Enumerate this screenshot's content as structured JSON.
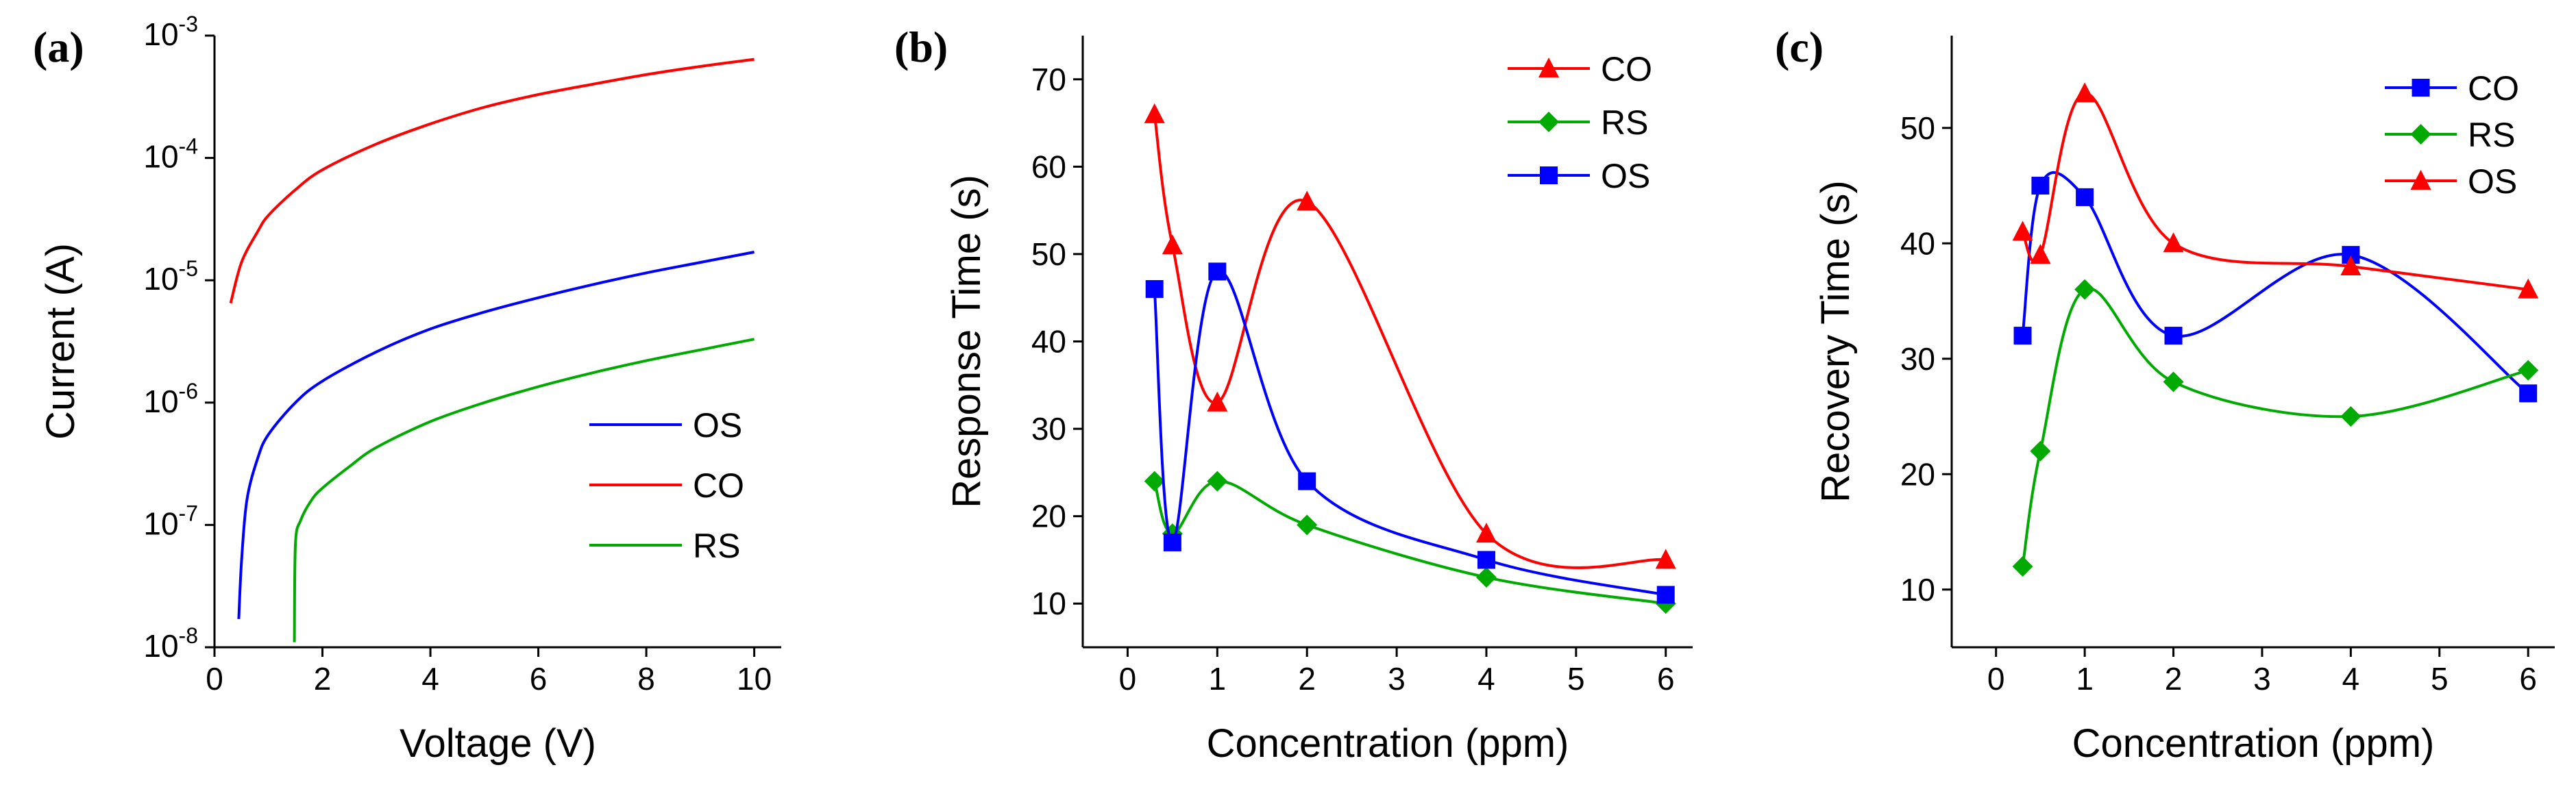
{
  "chart_data": [
    {
      "panel": "(a)",
      "type": "line",
      "xlabel": "Voltage (V)",
      "ylabel": "Current (A)",
      "xlim": [
        0,
        10.5
      ],
      "ylim": [
        1e-08,
        0.001
      ],
      "yscale": "log",
      "xticks": [
        0,
        2,
        4,
        6,
        8,
        10
      ],
      "yticks": [
        {
          "value": 1e-08,
          "base": "10",
          "exp": "-8"
        },
        {
          "value": 1e-07,
          "base": "10",
          "exp": "-7"
        },
        {
          "value": 1e-06,
          "base": "10",
          "exp": "-6"
        },
        {
          "value": 1e-05,
          "base": "10",
          "exp": "-5"
        },
        {
          "value": 0.0001,
          "base": "10",
          "exp": "-4"
        },
        {
          "value": 0.001,
          "base": "10",
          "exp": "-3"
        }
      ],
      "legend_position": "bottom-right",
      "series": [
        {
          "name": "OS",
          "color": "#0000ff",
          "x": [
            0.45,
            0.5,
            0.6,
            0.8,
            1.0,
            1.5,
            2,
            3,
            4,
            5,
            6,
            7,
            8,
            9,
            10
          ],
          "y": [
            1.7e-08,
            5e-08,
            1.6e-07,
            3.5e-07,
            5.5e-07,
            1e-06,
            1.5e-06,
            2.6e-06,
            4e-06,
            5.5e-06,
            7.2e-06,
            9.2e-06,
            1.15e-05,
            1.4e-05,
            1.7e-05
          ]
        },
        {
          "name": "CO",
          "color": "#ff0000",
          "x": [
            0.3,
            0.5,
            0.8,
            1,
            1.5,
            2,
            3,
            4,
            5,
            6,
            7,
            8,
            9,
            10
          ],
          "y": [
            6.5e-06,
            1.4e-05,
            2.5e-05,
            3.4e-05,
            5.5e-05,
            8e-05,
            0.00013,
            0.00019,
            0.00026,
            0.00033,
            0.0004,
            0.00048,
            0.00056,
            0.00064
          ]
        },
        {
          "name": "RS",
          "color": "#00aa00",
          "x": [
            1.48,
            1.5,
            1.6,
            1.8,
            2,
            2.5,
            3,
            4,
            5,
            6,
            7,
            8,
            9,
            10
          ],
          "y": [
            1.1e-08,
            7e-08,
            1.1e-07,
            1.6e-07,
            2e-07,
            3e-07,
            4.3e-07,
            7e-07,
            1e-06,
            1.35e-06,
            1.75e-06,
            2.2e-06,
            2.7e-06,
            3.3e-06
          ]
        }
      ]
    },
    {
      "panel": "(b)",
      "type": "line",
      "xlabel": "Concentration (ppm)",
      "ylabel": "Response Time (s)",
      "xlim": [
        -0.5,
        6.3
      ],
      "ylim": [
        5,
        75
      ],
      "xticks": [
        0,
        1,
        2,
        3,
        4,
        5,
        6
      ],
      "yticks": [
        10,
        20,
        30,
        40,
        50,
        60,
        70
      ],
      "legend_position": "top-right",
      "series": [
        {
          "name": "CO",
          "color": "#ff0000",
          "marker": "triangle",
          "x": [
            0.3,
            0.5,
            1,
            2,
            4,
            6
          ],
          "y": [
            66,
            51,
            33,
            56,
            18,
            15
          ]
        },
        {
          "name": "RS",
          "color": "#00aa00",
          "marker": "diamond",
          "x": [
            0.3,
            0.5,
            1,
            2,
            4,
            6
          ],
          "y": [
            24,
            18,
            24,
            19,
            13,
            10
          ]
        },
        {
          "name": "OS",
          "color": "#0000ff",
          "marker": "square",
          "x": [
            0.3,
            0.5,
            1,
            2,
            4,
            6
          ],
          "y": [
            46,
            17,
            48,
            24,
            15,
            11
          ]
        }
      ]
    },
    {
      "panel": "(c)",
      "type": "line",
      "xlabel": "Concentration (ppm)",
      "ylabel": "Recovery Time (s)",
      "xlim": [
        -0.5,
        6.3
      ],
      "ylim": [
        5,
        58
      ],
      "xticks": [
        0,
        1,
        2,
        3,
        4,
        5,
        6
      ],
      "yticks": [
        10,
        20,
        30,
        40,
        50
      ],
      "legend_position": "top-right",
      "series": [
        {
          "name": "CO",
          "color": "#0000ff",
          "marker": "square",
          "x": [
            0.3,
            0.5,
            1,
            2,
            4,
            6
          ],
          "y": [
            32,
            45,
            44,
            32,
            39,
            27
          ]
        },
        {
          "name": "RS",
          "color": "#00aa00",
          "marker": "diamond",
          "x": [
            0.3,
            0.5,
            1,
            2,
            4,
            6
          ],
          "y": [
            12,
            22,
            36,
            28,
            25,
            29
          ]
        },
        {
          "name": "OS",
          "color": "#ff0000",
          "marker": "triangle",
          "x": [
            0.3,
            0.5,
            1,
            2,
            4,
            6
          ],
          "y": [
            41,
            39,
            53,
            40,
            38,
            36
          ]
        }
      ]
    }
  ]
}
